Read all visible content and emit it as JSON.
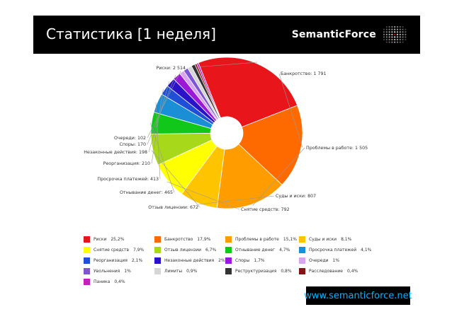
{
  "header": {
    "title": "Статистика [1 неделя]",
    "logo_text": "SemanticForce"
  },
  "footer": {
    "url": "www.semanticforce.net"
  },
  "chart_data": {
    "type": "pie",
    "title": "",
    "donut": true,
    "slices": [
      {
        "name": "Риски",
        "value": 2514,
        "pct": "25,2%",
        "label": "Риски: 2 514",
        "color": "#e8151b"
      },
      {
        "name": "Банкротство",
        "value": 1791,
        "pct": "17,9%",
        "label": "Банкротство: 1 791",
        "color": "#ff6a00"
      },
      {
        "name": "Проблемы в работе",
        "value": 1505,
        "pct": "15,1%",
        "label": "Проблемы в работе: 1 505",
        "color": "#ff9d00"
      },
      {
        "name": "Суды и иски",
        "value": 807,
        "pct": "8,1%",
        "label": "Суды и иски: 807",
        "color": "#ffc400"
      },
      {
        "name": "Снятие средств",
        "value": 792,
        "pct": "7,9%",
        "label": "Снятие средств: 792",
        "color": "#ffff00"
      },
      {
        "name": "Отзыв лицензии",
        "value": 672,
        "pct": "6,7%",
        "label": "Отзыв лицензии: 672",
        "color": "#a8d81a"
      },
      {
        "name": "Отнывание денег",
        "value": 465,
        "pct": "4,7%",
        "label": "Отнывание денег: 465",
        "color": "#11c71a"
      },
      {
        "name": "Просрочка платежей",
        "value": 413,
        "pct": "4,1%",
        "label": "Просрочка платежей: 413",
        "color": "#1a8fd6"
      },
      {
        "name": "Реорганизация",
        "value": 210,
        "pct": "2,1%",
        "label": "Реорганизация: 210",
        "color": "#1e4fd6"
      },
      {
        "name": "Незаконные действия",
        "value": 198,
        "pct": "2%",
        "label": "Незаконные действия: 198",
        "color": "#2a12c8"
      },
      {
        "name": "Споры",
        "value": 170,
        "pct": "1,7%",
        "label": "Споры: 170",
        "color": "#9b18d6"
      },
      {
        "name": "Очереди",
        "value": 102,
        "pct": "1%",
        "label": "Очереди: 102",
        "color": "#d8a5ef"
      },
      {
        "name": "Увольнения",
        "value": 100,
        "pct": "1%",
        "label": "",
        "color": "#7d55d6"
      },
      {
        "name": "Лимиты",
        "value": 90,
        "pct": "0,9%",
        "label": "",
        "color": "#d6d6d6"
      },
      {
        "name": "Реструктуризация",
        "value": 80,
        "pct": "0,8%",
        "label": "",
        "color": "#333333"
      },
      {
        "name": "Расследование",
        "value": 40,
        "pct": "0,4%",
        "label": "",
        "color": "#8b1016"
      },
      {
        "name": "Паника",
        "value": 40,
        "pct": "0,4%",
        "label": "",
        "color": "#c21ec2"
      }
    ],
    "legend_order": [
      "Риски",
      "Банкротство",
      "Проблемы в работе",
      "Суды и иски",
      "Снятие средств",
      "Отзыв лицензии",
      "Отнывание денег",
      "Просрочка платежей",
      "Реорганизация",
      "Незаконные действия",
      "Споры",
      "Очереди",
      "Увольнения",
      "Лимиты",
      "Реструктуризация",
      "Расследование",
      "Паника"
    ]
  }
}
